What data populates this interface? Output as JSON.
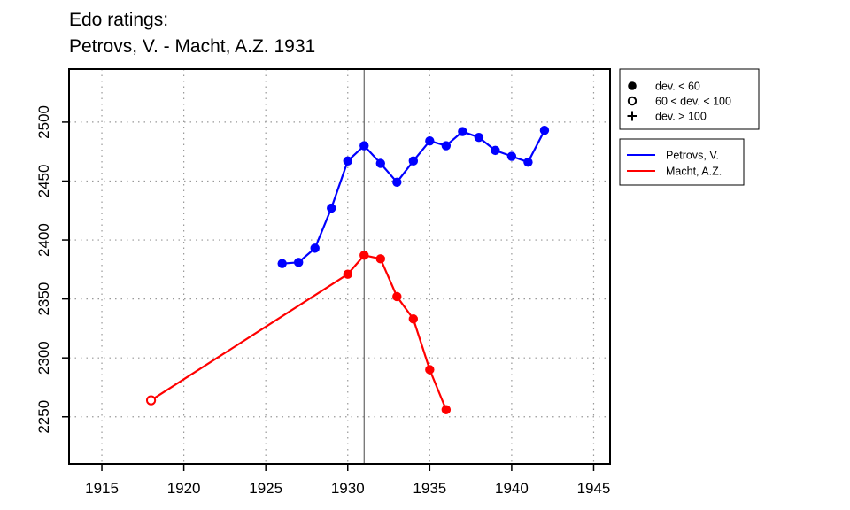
{
  "chart_data": {
    "type": "line",
    "title": "Edo ratings:",
    "subtitle": "Petrovs, V. - Macht, A.Z. 1931",
    "xlabel": "",
    "ylabel": "",
    "xlim": [
      1913,
      1946
    ],
    "ylim": [
      2210,
      2545
    ],
    "x_ticks": [
      1915,
      1920,
      1925,
      1930,
      1935,
      1940,
      1945
    ],
    "y_ticks": [
      2250,
      2300,
      2350,
      2400,
      2450,
      2500
    ],
    "grid": true,
    "grid_style": "dotted",
    "reference_line_x": 1931,
    "marker_legend": [
      {
        "symbol": "filled-circle",
        "label": "dev. < 60"
      },
      {
        "symbol": "open-circle",
        "label": "60 < dev. < 100"
      },
      {
        "symbol": "plus",
        "label": "dev. > 100"
      }
    ],
    "legend_position": "right",
    "series": [
      {
        "name": "Petrovs, V.",
        "color": "#0000ff",
        "points": [
          {
            "x": 1926,
            "y": 2380,
            "marker": "filled-circle"
          },
          {
            "x": 1927,
            "y": 2381,
            "marker": "filled-circle"
          },
          {
            "x": 1928,
            "y": 2393,
            "marker": "filled-circle"
          },
          {
            "x": 1929,
            "y": 2427,
            "marker": "filled-circle"
          },
          {
            "x": 1930,
            "y": 2467,
            "marker": "filled-circle"
          },
          {
            "x": 1931,
            "y": 2480,
            "marker": "filled-circle"
          },
          {
            "x": 1932,
            "y": 2465,
            "marker": "filled-circle"
          },
          {
            "x": 1933,
            "y": 2449,
            "marker": "filled-circle"
          },
          {
            "x": 1934,
            "y": 2467,
            "marker": "filled-circle"
          },
          {
            "x": 1935,
            "y": 2484,
            "marker": "filled-circle"
          },
          {
            "x": 1936,
            "y": 2480,
            "marker": "filled-circle"
          },
          {
            "x": 1937,
            "y": 2492,
            "marker": "filled-circle"
          },
          {
            "x": 1938,
            "y": 2487,
            "marker": "filled-circle"
          },
          {
            "x": 1939,
            "y": 2476,
            "marker": "filled-circle"
          },
          {
            "x": 1940,
            "y": 2471,
            "marker": "filled-circle"
          },
          {
            "x": 1941,
            "y": 2466,
            "marker": "filled-circle"
          },
          {
            "x": 1942,
            "y": 2493,
            "marker": "filled-circle"
          }
        ]
      },
      {
        "name": "Macht, A.Z.",
        "color": "#ff0000",
        "points": [
          {
            "x": 1918,
            "y": 2264,
            "marker": "open-circle"
          },
          {
            "x": 1930,
            "y": 2371,
            "marker": "filled-circle"
          },
          {
            "x": 1931,
            "y": 2387,
            "marker": "filled-circle"
          },
          {
            "x": 1932,
            "y": 2384,
            "marker": "filled-circle"
          },
          {
            "x": 1933,
            "y": 2352,
            "marker": "filled-circle"
          },
          {
            "x": 1934,
            "y": 2333,
            "marker": "filled-circle"
          },
          {
            "x": 1935,
            "y": 2290,
            "marker": "filled-circle"
          },
          {
            "x": 1936,
            "y": 2256,
            "marker": "filled-circle"
          }
        ]
      }
    ]
  }
}
